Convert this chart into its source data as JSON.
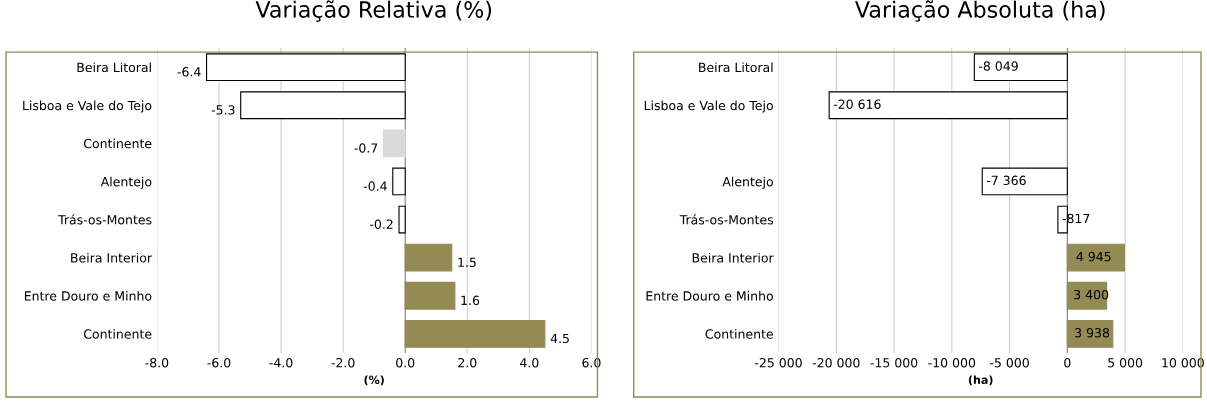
{
  "chart_data": [
    {
      "type": "bar",
      "orientation": "horizontal",
      "title": "Variação Relativa (%)",
      "xlabel": "(%)",
      "categories": [
        "Beira Litoral",
        "Lisboa e Vale do Tejo",
        "Continente",
        "Alentejo",
        "Trás-os-Montes",
        "Beira Interior",
        "Entre Douro e Minho",
        "Continente"
      ],
      "values": [
        -6.4,
        -5.3,
        -0.7,
        -0.4,
        -0.2,
        1.5,
        1.6,
        4.5
      ],
      "colors": [
        "#ffffff",
        "#ffffff",
        "#d9d9d9",
        "#ffffff",
        "#ffffff",
        "#948a54",
        "#948a54",
        "#948a54"
      ],
      "data_labels": true,
      "xlim": [
        -8,
        6
      ],
      "xticks": [
        {
          "value": -8,
          "label": "-8.0"
        },
        {
          "value": -6,
          "label": "-6.0"
        },
        {
          "value": -4,
          "label": "-4.0"
        },
        {
          "value": -2,
          "label": "-2.0"
        },
        {
          "value": 0,
          "label": "0.0"
        },
        {
          "value": 2,
          "label": "2.0"
        },
        {
          "value": 4,
          "label": "4.0"
        },
        {
          "value": 6,
          "label": "6.0"
        }
      ],
      "grid": "x"
    },
    {
      "type": "bar",
      "orientation": "horizontal",
      "title": "Variação Absoluta (ha)",
      "xlabel": "(ha)",
      "categories": [
        "Beira Litoral",
        "Lisboa e Vale do Tejo",
        null,
        "Alentejo",
        "Trás-os-Montes",
        "Beira Interior",
        "Entre Douro e Minho",
        "Continente"
      ],
      "values": [
        -8049,
        -20616,
        null,
        -7366,
        -817,
        4945,
        3400,
        3938
      ],
      "colors": [
        "#ffffff",
        "#ffffff",
        "#ffffff",
        "#ffffff",
        "#ffffff",
        "#948a54",
        "#948a54",
        "#948a54"
      ],
      "value_labels": [
        "-8 049",
        "-20 616",
        null,
        "-7 366",
        "-817",
        "4 945",
        "3 400",
        "3 938"
      ],
      "xlim": [
        -25000,
        10000
      ],
      "xticks": [
        {
          "value": -25000,
          "label": "-25 000"
        },
        {
          "value": -20000,
          "label": "-20 000"
        },
        {
          "value": -15000,
          "label": "-15 000"
        },
        {
          "value": -10000,
          "label": "-10 000"
        },
        {
          "value": -5000,
          "label": "-5 000"
        },
        0,
        {
          "value": 5000,
          "label": "5 000"
        },
        {
          "value": 10000,
          "label": "10 000"
        }
      ],
      "grid": "x"
    }
  ]
}
